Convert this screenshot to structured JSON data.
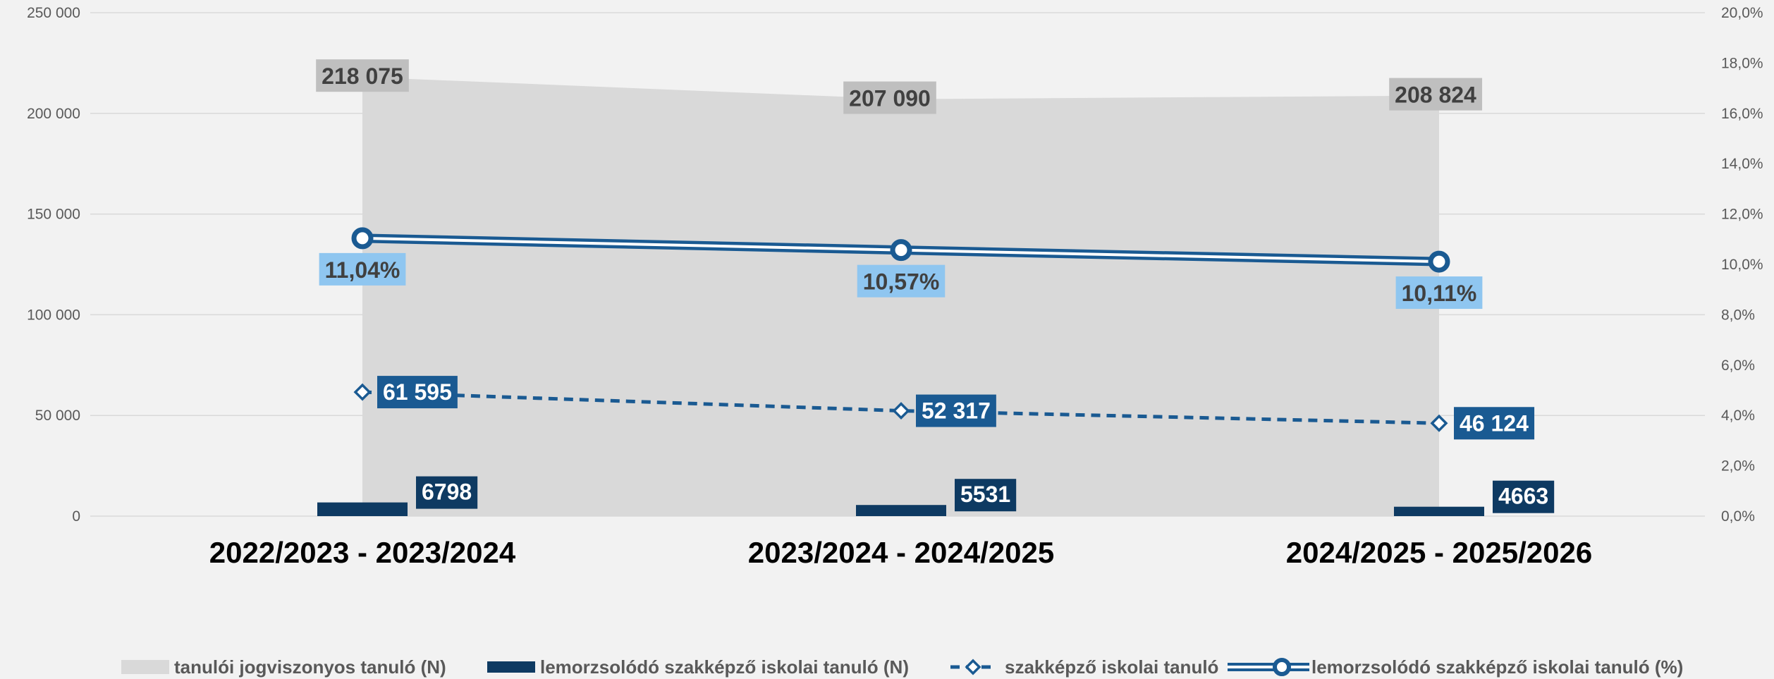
{
  "chart_data": {
    "type": "combo",
    "categories": [
      "2022/2023 - 2023/2024",
      "2023/2024 - 2024/2025",
      "2024/2025 - 2025/2026"
    ],
    "series": [
      {
        "name": "tanulói jogviszonyos tanuló (N)",
        "type": "area",
        "axis": "left",
        "color": "#d9d9d9",
        "values": [
          218075,
          207090,
          208824
        ],
        "labels": [
          "218 075",
          "207 090",
          "208 824"
        ]
      },
      {
        "name": "lemorzsolódó szakképző iskolai tanuló (N)",
        "type": "bar",
        "axis": "left",
        "color": "#0e3a62",
        "values": [
          6798,
          5531,
          4663
        ],
        "labels": [
          "6798",
          "5531",
          "4663"
        ]
      },
      {
        "name": "szakképző iskolai tanuló",
        "type": "line",
        "style": "dashed",
        "marker": "diamond",
        "axis": "left",
        "color": "#1a5a92",
        "values": [
          61595,
          52317,
          46124
        ],
        "labels": [
          "61 595",
          "52 317",
          "46 124"
        ]
      },
      {
        "name": "lemorzsolódó szakképző iskolai tanuló (%)",
        "type": "line",
        "style": "double",
        "marker": "circle",
        "axis": "right",
        "color": "#1a5a92",
        "values": [
          11.04,
          10.57,
          10.11
        ],
        "labels": [
          "11,04%",
          "10,57%",
          "10,11%"
        ]
      }
    ],
    "y_left": {
      "min": 0,
      "max": 250000,
      "ticks": [
        0,
        50000,
        100000,
        150000,
        200000,
        250000
      ],
      "tick_labels": [
        "0",
        "50 000",
        "100 000",
        "150 000",
        "200 000",
        "250 000"
      ]
    },
    "y_right": {
      "min": 0,
      "max": 20,
      "ticks": [
        0,
        2,
        4,
        6,
        8,
        10,
        12,
        14,
        16,
        18,
        20
      ],
      "tick_labels": [
        "0,0%",
        "2,0%",
        "4,0%",
        "6,0%",
        "8,0%",
        "10,0%",
        "12,0%",
        "14,0%",
        "16,0%",
        "18,0%",
        "20,0%"
      ]
    },
    "grid": true,
    "legend": "bottom",
    "colors": {
      "background": "#f2f2f2",
      "grid": "#d9d9d9",
      "area": "#d9d9d9",
      "area_label_bg": "#bfbfbf",
      "bar": "#0e3a62",
      "line": "#1a5a92",
      "pct_label_bg": "#8fc6f0",
      "count_label_bg": "#1a5a92"
    }
  }
}
